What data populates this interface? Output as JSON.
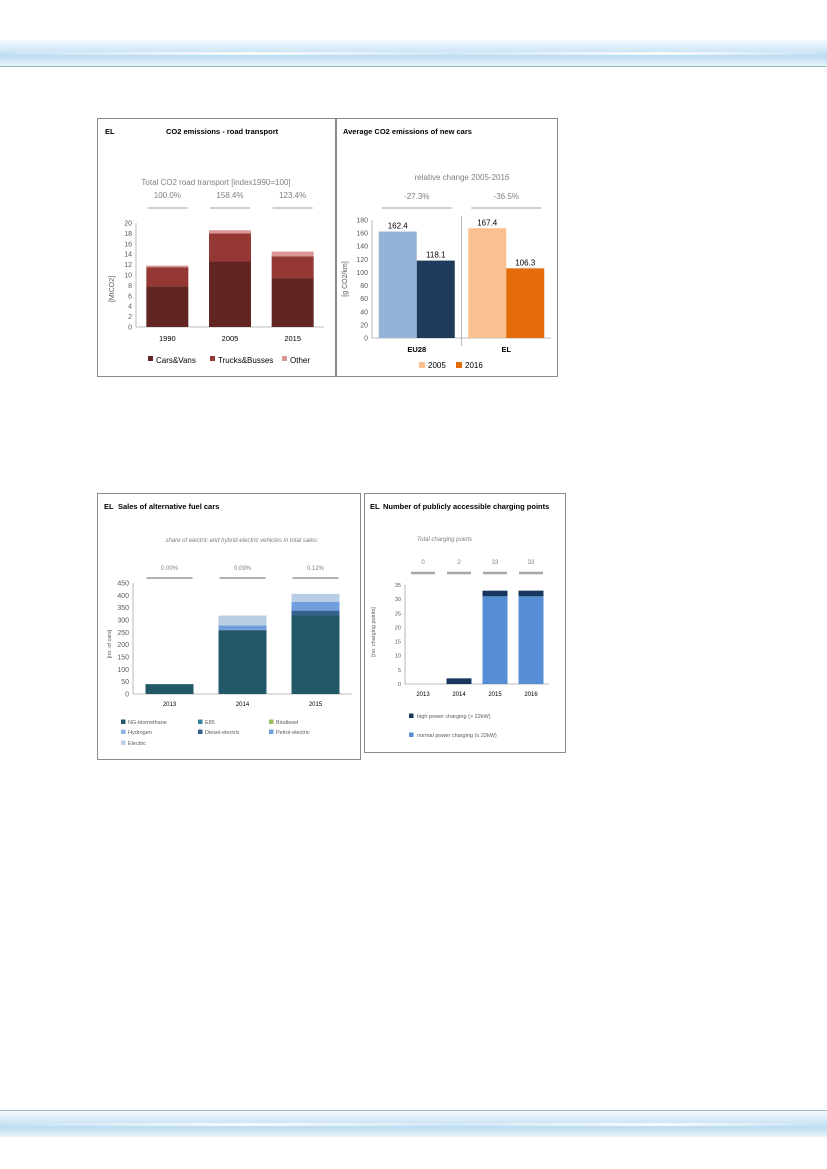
{
  "chart_data": [
    {
      "type": "bar",
      "country": "EL",
      "title": "CO2 emissions - road transport",
      "subtitle": "Total CO2 road  transport [index1990=100]",
      "index_labels": [
        "100.0%",
        "158.4%",
        "123.4%"
      ],
      "categories": [
        "1990",
        "2005",
        "2015"
      ],
      "series": [
        {
          "name": "Cars&Vans",
          "color": "#632523",
          "values": [
            7.8,
            12.6,
            9.4
          ]
        },
        {
          "name": "Trucks&Busses",
          "color": "#953735",
          "values": [
            3.7,
            5.4,
            4.2
          ]
        },
        {
          "name": "Other",
          "color": "#d99694",
          "values": [
            0.3,
            0.6,
            0.9
          ]
        }
      ],
      "ylabel": "[MtCO2]",
      "ylim": [
        0,
        20
      ],
      "yticks": [
        "0",
        "2",
        "4",
        "6",
        "8",
        "10",
        "12",
        "14",
        "16",
        "18",
        "20"
      ],
      "stacked": true,
      "legend_position": "bottom"
    },
    {
      "type": "bar",
      "title": "Average CO2 emissions of new cars",
      "subtitle": "relative change 2005-2016",
      "change_labels": [
        "-27.3%",
        "-36.5%"
      ],
      "groups": [
        {
          "name": "EU28",
          "values": [
            162.4,
            118.1
          ],
          "labels": [
            "162.4",
            "118.1"
          ],
          "colors": [
            "#95b3d7",
            "#1f3b5c"
          ]
        },
        {
          "name": "EL",
          "values": [
            167.4,
            106.3
          ],
          "labels": [
            "167.4",
            "106.3"
          ],
          "colors": [
            "#fac090",
            "#e46c0a"
          ]
        }
      ],
      "series": [
        {
          "name": "2005",
          "color": "#fac090"
        },
        {
          "name": "2016",
          "color": "#e46c0a"
        }
      ],
      "ylabel": "[g CO2/km]",
      "ylim": [
        0,
        180
      ],
      "yticks": [
        "0",
        "20",
        "40",
        "60",
        "80",
        "100",
        "120",
        "140",
        "160",
        "180"
      ],
      "legend_position": "bottom"
    },
    {
      "type": "bar",
      "country": "EL",
      "title": "Sales of alternative fuel cars",
      "subtitle": "share of  electric and hybrid-electric vehicles in total sales:",
      "share_labels": [
        "0.00%",
        "0.09%",
        "0.12%"
      ],
      "categories": [
        "2013",
        "2014",
        "2015"
      ],
      "series": [
        {
          "name": "NG-biomethane",
          "color": "#215968",
          "values": [
            40,
            257,
            320
          ]
        },
        {
          "name": "E85",
          "color": "#31859c",
          "values": [
            0,
            0,
            0
          ]
        },
        {
          "name": "Biodiesel",
          "color": "#9bbb59",
          "values": [
            0,
            0,
            0
          ]
        },
        {
          "name": "Hydrogen",
          "color": "#8eb4e3",
          "values": [
            0,
            0,
            0
          ]
        },
        {
          "name": "Diesel-electric",
          "color": "#366092",
          "values": [
            0,
            3,
            18
          ]
        },
        {
          "name": "Petrol-electric",
          "color": "#6fa0dc",
          "values": [
            0,
            18,
            36
          ]
        },
        {
          "name": "Electric",
          "color": "#b9cde5",
          "values": [
            0,
            40,
            32
          ]
        }
      ],
      "ylabel": "[no. of cars]",
      "ylim": [
        0,
        450
      ],
      "yticks": [
        "0",
        "50",
        "100",
        "150",
        "200",
        "250",
        "300",
        "350",
        "400",
        "450"
      ],
      "stacked": true,
      "legend_position": "bottom"
    },
    {
      "type": "bar",
      "country": "EL",
      "title": "Number of publicly accessible charging points",
      "subtitle": "Total charging points",
      "total_labels": [
        "0",
        "2",
        "33",
        "33"
      ],
      "categories": [
        "2013",
        "2014",
        "2015",
        "2016"
      ],
      "series": [
        {
          "name": "normal power charging (≤ 22kW)",
          "color": "#558ed5",
          "values": [
            0,
            0,
            31,
            31
          ]
        },
        {
          "name": "high power charging (> 22kW)",
          "color": "#17375e",
          "values": [
            0,
            2,
            2,
            2
          ]
        }
      ],
      "ylabel": "[no. charging points]",
      "ylim": [
        0,
        35
      ],
      "yticks": [
        "0",
        "5",
        "10",
        "15",
        "20",
        "25",
        "30",
        "35"
      ],
      "stacked": true,
      "legend_position": "bottom"
    }
  ]
}
